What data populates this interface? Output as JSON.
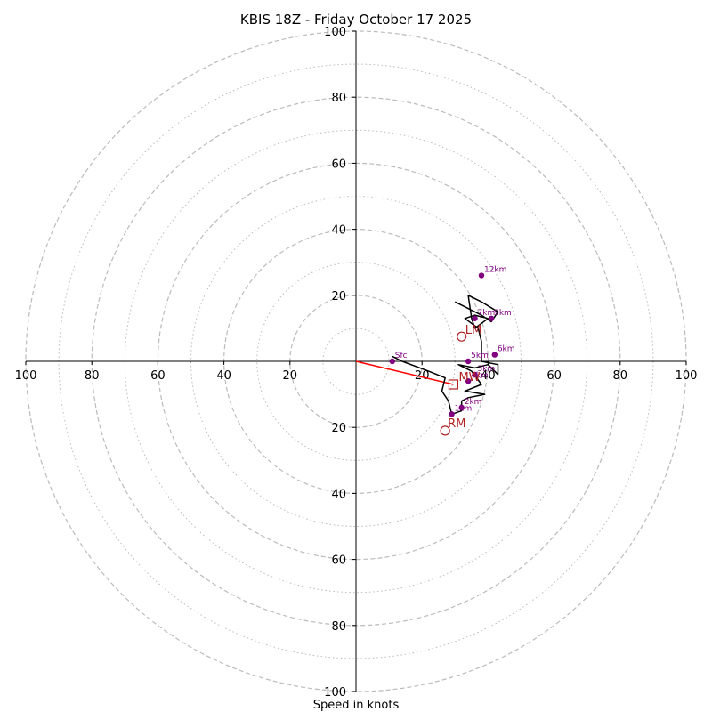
{
  "chart_data": {
    "type": "hodograph",
    "title": "KBIS 18Z - Friday October 17 2025",
    "xlabel": "Speed in knots",
    "units": "kt",
    "range": [
      -100,
      100
    ],
    "rings": {
      "major": [
        10,
        30,
        50,
        70,
        90
      ],
      "minor": [
        20,
        40,
        60,
        80,
        100
      ]
    },
    "ticks": {
      "x": [
        {
          "value": -100,
          "label": "100"
        },
        {
          "value": -80,
          "label": "80"
        },
        {
          "value": -60,
          "label": "60"
        },
        {
          "value": -40,
          "label": "40"
        },
        {
          "value": -20,
          "label": "20"
        },
        {
          "value": 20,
          "label": "20"
        },
        {
          "value": 40,
          "label": "40"
        },
        {
          "value": 60,
          "label": "60"
        },
        {
          "value": 80,
          "label": "80"
        },
        {
          "value": 100,
          "label": "100"
        }
      ],
      "y": [
        {
          "value": 100,
          "label": "100"
        },
        {
          "value": 80,
          "label": "80"
        },
        {
          "value": 60,
          "label": "60"
        },
        {
          "value": 40,
          "label": "40"
        },
        {
          "value": 20,
          "label": "20"
        },
        {
          "value": -20,
          "label": "20"
        },
        {
          "value": -40,
          "label": "40"
        },
        {
          "value": -60,
          "label": "60"
        },
        {
          "value": -80,
          "label": "80"
        },
        {
          "value": -100,
          "label": "100"
        }
      ]
    },
    "hodograph_trace": [
      [
        11,
        1.5
      ],
      [
        14,
        0
      ],
      [
        22,
        -3
      ],
      [
        27,
        -5
      ],
      [
        26,
        -9
      ],
      [
        28,
        -12
      ],
      [
        29,
        -16
      ],
      [
        32,
        -15
      ],
      [
        32,
        -12
      ],
      [
        34,
        -11
      ],
      [
        39,
        -10
      ],
      [
        33,
        -9
      ],
      [
        38,
        -7
      ],
      [
        35,
        -3
      ],
      [
        31,
        -1
      ],
      [
        36,
        -2
      ],
      [
        40,
        -1
      ],
      [
        43,
        -4
      ],
      [
        43,
        -1
      ],
      [
        38,
        0
      ],
      [
        38,
        6
      ],
      [
        37,
        10
      ],
      [
        33,
        13
      ],
      [
        36,
        14
      ],
      [
        40,
        13
      ],
      [
        36,
        10
      ],
      [
        35,
        13
      ],
      [
        34,
        20
      ],
      [
        38,
        18
      ],
      [
        43,
        15
      ],
      [
        41,
        12
      ],
      [
        38,
        14
      ],
      [
        30,
        18
      ]
    ],
    "height_markers": [
      {
        "label": "Sfc",
        "u": 11,
        "v": 0
      },
      {
        "label": "1km",
        "u": 29,
        "v": -16
      },
      {
        "label": "2km",
        "u": 32,
        "v": -14
      },
      {
        "label": "3km",
        "u": 36,
        "v": -4
      },
      {
        "label": "4km",
        "u": 34,
        "v": -6
      },
      {
        "label": "5km",
        "u": 34,
        "v": 0
      },
      {
        "label": "6km",
        "u": 42,
        "v": 2
      },
      {
        "label": "7km",
        "u": 36,
        "v": 13
      },
      {
        "label": "9km",
        "u": 41,
        "v": 13
      },
      {
        "label": "12km",
        "u": 38,
        "v": 26
      }
    ],
    "storm_motion": {
      "mean_wind": {
        "label": "MW",
        "u": 29.5,
        "v": -7
      },
      "right_mover": {
        "label": "RM",
        "u": 27,
        "v": -21
      },
      "left_mover": {
        "label": "LM",
        "u": 32,
        "v": 7.5
      }
    },
    "colors": {
      "trace": "#000000",
      "height_marker": "#800080",
      "storm_motion": "#b22222",
      "shear_vector": "#ff0000",
      "ring": "#bbbbbb",
      "axis": "#000000"
    }
  }
}
